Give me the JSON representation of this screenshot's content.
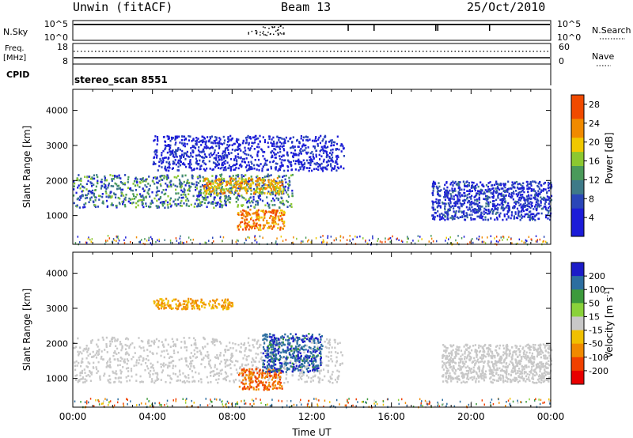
{
  "header": {
    "station": "Unwin (fitACF)",
    "beam": "Beam 13",
    "date": "25/Oct/2010"
  },
  "top_panels": {
    "nsky": {
      "label": "N.Sky",
      "ytick_top": "10^5",
      "ytick_bottom": "10^0"
    },
    "nsearch": {
      "label": "N.Search",
      "ytick_top": "10^5",
      "ytick_bottom": "10^0"
    },
    "freq": {
      "label_line1": "Freq.",
      "label_line2": "[MHz]",
      "ytick_top": "18",
      "ytick_bottom": "8"
    },
    "nave": {
      "label": "Nave",
      "ytick_top": "60",
      "ytick_bottom": "0"
    },
    "cpid": {
      "label": "CPID",
      "value": "stereo_scan 8551"
    }
  },
  "chart_data": [
    {
      "type": "heatmap",
      "title": "",
      "parameter": "Power",
      "ylabel": "Slant Range [km]",
      "xlabel": "",
      "xlim": [
        "00:00",
        "24:00"
      ],
      "ylim": [
        180,
        4600
      ],
      "yticks": [
        "1000",
        "2000",
        "3000",
        "4000"
      ],
      "colorbar": {
        "label": "Power [dB]",
        "ticks": [
          "4",
          "8",
          "12",
          "16",
          "20",
          "24",
          "28"
        ],
        "range": [
          0,
          30
        ]
      },
      "features": [
        {
          "name": "evening band",
          "hours": [
            0.0,
            11.0
          ],
          "range_km": [
            1250,
            2200
          ],
          "power_db": [
            3,
            18
          ]
        },
        {
          "name": "strong echoes",
          "hours": [
            6.5,
            10.5
          ],
          "range_km": [
            1650,
            2100
          ],
          "power_db": [
            16,
            26
          ]
        },
        {
          "name": "near-range patch",
          "hours": [
            8.2,
            10.6
          ],
          "range_km": [
            620,
            1200
          ],
          "power_db": [
            18,
            30
          ]
        },
        {
          "name": "far-range arc",
          "hours": [
            4.0,
            13.6
          ],
          "range_km": [
            2300,
            3300
          ],
          "power_db": [
            2,
            8
          ]
        },
        {
          "name": "morning band",
          "hours": [
            18.0,
            24.0
          ],
          "range_km": [
            900,
            2000
          ],
          "power_db": [
            2,
            10
          ]
        }
      ]
    },
    {
      "type": "heatmap",
      "title": "",
      "parameter": "Velocity",
      "ylabel": "Slant Range [km]",
      "xlabel": "Time UT",
      "xlim": [
        "00:00",
        "24:00"
      ],
      "xticks": [
        "00:00",
        "04:00",
        "08:00",
        "12:00",
        "16:00",
        "20:00",
        "00:00"
      ],
      "ylim": [
        180,
        4600
      ],
      "yticks": [
        "1000",
        "2000",
        "3000",
        "4000"
      ],
      "colorbar": {
        "label": "Velocity [m s^-1]",
        "ticks": [
          "200",
          "100",
          "50",
          "15",
          "-15",
          "-50",
          "-100",
          "-200"
        ]
      },
      "features": [
        {
          "name": "ground scatter band",
          "hours": [
            0.0,
            13.5
          ],
          "range_km": [
            900,
            2200
          ],
          "velocity": [
            -15,
            15
          ]
        },
        {
          "name": "far-range negative",
          "hours": [
            4.0,
            8.0
          ],
          "range_km": [
            3000,
            3300
          ],
          "velocity": [
            -80,
            -30
          ]
        },
        {
          "name": "near-range negative",
          "hours": [
            8.3,
            10.5
          ],
          "range_km": [
            700,
            1300
          ],
          "velocity": [
            -150,
            -50
          ]
        },
        {
          "name": "positive patch",
          "hours": [
            9.5,
            12.5
          ],
          "range_km": [
            1200,
            2300
          ],
          "velocity": [
            80,
            250
          ]
        },
        {
          "name": "morning ground scatter",
          "hours": [
            18.5,
            24.0
          ],
          "range_km": [
            900,
            2000
          ],
          "velocity": [
            -15,
            15
          ]
        }
      ]
    }
  ]
}
